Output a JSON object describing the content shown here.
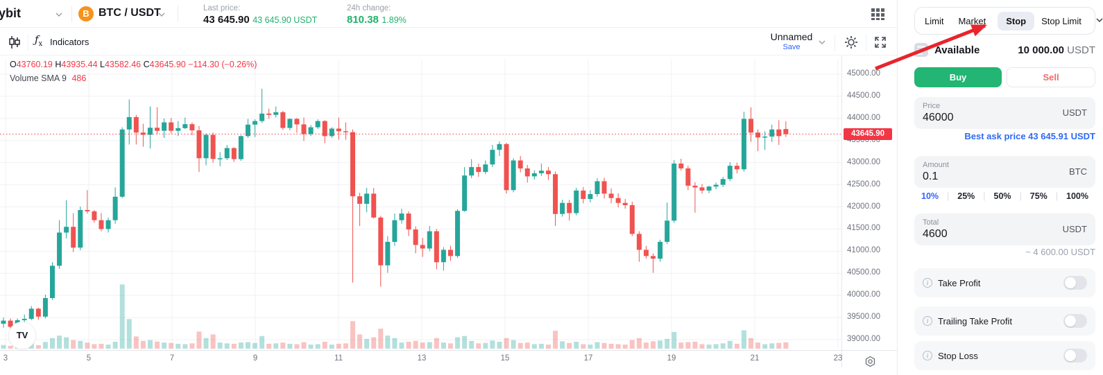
{
  "header": {
    "brand": "ybit",
    "pair": "BTC / USDT",
    "pair_icon": "btc-icon",
    "last_price_label": "Last price:",
    "last_price": "43 645.90",
    "last_price_sub": "43 645.90 USDT",
    "change_label": "24h change:",
    "change_value": "810.38",
    "change_pct": "1.89%"
  },
  "toolbar": {
    "indicators_label": "Indicators",
    "layout_name": "Unnamed",
    "save_label": "Save"
  },
  "legend": {
    "o_label": "O",
    "o": "43760.19",
    "h_label": "H",
    "h": "43935.44",
    "l_label": "L",
    "l": "43582.46",
    "c_label": "C",
    "c": "43645.90",
    "change": "−114.30 (−0.26%)",
    "volume_label": "Volume SMA 9",
    "volume_value": "486"
  },
  "chart_data": {
    "type": "candlestick",
    "timeframe": "4h",
    "title": "BTC / USDT",
    "y_axis": {
      "min": 39000,
      "max": 45000,
      "step": 500,
      "label_format": "0.00"
    },
    "x_axis_days": [
      3,
      5,
      7,
      9,
      11,
      13,
      15,
      17,
      19,
      21,
      23
    ],
    "last_price": 43645.9,
    "grid": true,
    "candles": [
      [
        39360,
        39500,
        39270,
        39430,
        180
      ],
      [
        39430,
        39480,
        39230,
        39290,
        140
      ],
      [
        39290,
        39480,
        39250,
        39440,
        120
      ],
      [
        39440,
        39570,
        39340,
        39470,
        160
      ],
      [
        39470,
        39760,
        39440,
        39700,
        260
      ],
      [
        39700,
        39720,
        39450,
        39520,
        170
      ],
      [
        39520,
        40020,
        39480,
        39940,
        330
      ],
      [
        39940,
        40750,
        39900,
        40670,
        520
      ],
      [
        40670,
        41700,
        40600,
        41420,
        640
      ],
      [
        41420,
        42150,
        41290,
        41550,
        560
      ],
      [
        41550,
        41860,
        40980,
        41080,
        420
      ],
      [
        41080,
        42010,
        41020,
        41930,
        380
      ],
      [
        41930,
        42380,
        41850,
        41900,
        300
      ],
      [
        41900,
        41930,
        41640,
        41700,
        220
      ],
      [
        41700,
        41860,
        41450,
        41500,
        240
      ],
      [
        41500,
        41760,
        41420,
        41700,
        200
      ],
      [
        41700,
        42440,
        41620,
        42230,
        340
      ],
      [
        42230,
        43800,
        42200,
        43750,
        3150
      ],
      [
        43750,
        44430,
        43410,
        44030,
        1450
      ],
      [
        44030,
        44080,
        43410,
        43680,
        600
      ],
      [
        43680,
        43880,
        43360,
        43630,
        380
      ],
      [
        43630,
        44270,
        43320,
        43790,
        420
      ],
      [
        43790,
        44250,
        43650,
        43720,
        350
      ],
      [
        43720,
        44000,
        43560,
        43910,
        300
      ],
      [
        43910,
        44010,
        43660,
        43720,
        280
      ],
      [
        43720,
        43940,
        43600,
        43780,
        240
      ],
      [
        43780,
        44020,
        43760,
        43870,
        220
      ],
      [
        43870,
        43910,
        43620,
        43730,
        260
      ],
      [
        43730,
        43830,
        42790,
        43100,
        840
      ],
      [
        43100,
        43660,
        42940,
        43630,
        520
      ],
      [
        43630,
        43680,
        43000,
        43085,
        700
      ],
      [
        43085,
        43240,
        42920,
        43100,
        300
      ],
      [
        43100,
        43400,
        43060,
        43330,
        260
      ],
      [
        43330,
        43350,
        43020,
        43080,
        240
      ],
      [
        43080,
        43620,
        43040,
        43600,
        300
      ],
      [
        43600,
        43990,
        43560,
        43860,
        320
      ],
      [
        43860,
        43980,
        43580,
        43940,
        280
      ],
      [
        43940,
        44670,
        43900,
        44110,
        620
      ],
      [
        44110,
        44220,
        43990,
        44080,
        240
      ],
      [
        44080,
        44270,
        44020,
        44140,
        260
      ],
      [
        44140,
        44170,
        43740,
        43785,
        300
      ],
      [
        43785,
        44000,
        43730,
        43990,
        240
      ],
      [
        43990,
        44010,
        43675,
        43865,
        220
      ],
      [
        43865,
        44020,
        43490,
        43645,
        320
      ],
      [
        43645,
        43850,
        43600,
        43800,
        200
      ],
      [
        43800,
        43980,
        43760,
        43940,
        220
      ],
      [
        43940,
        43960,
        43440,
        43600,
        340
      ],
      [
        43600,
        43800,
        43560,
        43770,
        200
      ],
      [
        43770,
        44020,
        43520,
        43710,
        240
      ],
      [
        43710,
        43910,
        43520,
        43690,
        260
      ],
      [
        43690,
        43750,
        40290,
        42240,
        1350
      ],
      [
        42240,
        42320,
        41570,
        42070,
        700
      ],
      [
        42070,
        42430,
        41880,
        42300,
        480
      ],
      [
        42300,
        42430,
        41740,
        41760,
        560
      ],
      [
        41760,
        41800,
        40200,
        40680,
        980
      ],
      [
        40680,
        41340,
        40510,
        41210,
        640
      ],
      [
        41210,
        41850,
        41120,
        41700,
        520
      ],
      [
        41700,
        41960,
        41620,
        41850,
        300
      ],
      [
        41850,
        41900,
        41340,
        41490,
        340
      ],
      [
        41490,
        41560,
        40950,
        41140,
        380
      ],
      [
        41140,
        41300,
        40870,
        41060,
        300
      ],
      [
        41060,
        41570,
        41000,
        41450,
        320
      ],
      [
        41450,
        41500,
        40590,
        40750,
        520
      ],
      [
        40750,
        41090,
        40560,
        41030,
        300
      ],
      [
        41030,
        41120,
        40780,
        40890,
        260
      ],
      [
        40890,
        41950,
        40850,
        41910,
        560
      ],
      [
        41910,
        42900,
        41890,
        42710,
        620
      ],
      [
        42710,
        43080,
        42650,
        42900,
        380
      ],
      [
        42900,
        42980,
        42680,
        42790,
        260
      ],
      [
        42790,
        43050,
        42740,
        42960,
        280
      ],
      [
        42960,
        43400,
        42900,
        43290,
        400
      ],
      [
        43290,
        43480,
        43150,
        43420,
        340
      ],
      [
        43420,
        43450,
        42300,
        42380,
        520
      ],
      [
        42380,
        43100,
        42330,
        43050,
        420
      ],
      [
        43050,
        43150,
        42780,
        42870,
        280
      ],
      [
        42870,
        42950,
        42550,
        42690,
        300
      ],
      [
        42690,
        42830,
        42620,
        42760,
        220
      ],
      [
        42760,
        42980,
        42700,
        42820,
        240
      ],
      [
        42820,
        42900,
        42610,
        42740,
        200
      ],
      [
        42740,
        42800,
        41570,
        41840,
        880
      ],
      [
        41840,
        42160,
        41780,
        42090,
        360
      ],
      [
        42090,
        42160,
        41690,
        41860,
        280
      ],
      [
        41860,
        42430,
        41810,
        42370,
        340
      ],
      [
        42370,
        42450,
        42080,
        42180,
        220
      ],
      [
        42180,
        42380,
        42100,
        42290,
        200
      ],
      [
        42290,
        42650,
        42230,
        42580,
        320
      ],
      [
        42580,
        42660,
        42190,
        42300,
        280
      ],
      [
        42300,
        42420,
        42080,
        42200,
        240
      ],
      [
        42200,
        42310,
        41990,
        42090,
        220
      ],
      [
        42090,
        42180,
        41960,
        42040,
        200
      ],
      [
        42040,
        42120,
        41340,
        41390,
        420
      ],
      [
        41390,
        41450,
        40760,
        41030,
        520
      ],
      [
        41030,
        41120,
        40830,
        40890,
        300
      ],
      [
        40890,
        40950,
        40510,
        40830,
        360
      ],
      [
        40830,
        41260,
        40760,
        41210,
        400
      ],
      [
        41210,
        42100,
        41160,
        41690,
        480
      ],
      [
        41690,
        43060,
        41640,
        42980,
        820
      ],
      [
        42980,
        43090,
        42820,
        42870,
        300
      ],
      [
        42870,
        42930,
        42380,
        42480,
        320
      ],
      [
        42480,
        42560,
        41870,
        42440,
        340
      ],
      [
        42440,
        42520,
        42300,
        42370,
        220
      ],
      [
        42370,
        42480,
        42310,
        42460,
        200
      ],
      [
        42460,
        42550,
        42400,
        42500,
        220
      ],
      [
        42500,
        42680,
        42450,
        42630,
        260
      ],
      [
        42630,
        43010,
        42580,
        42930,
        380
      ],
      [
        42930,
        43000,
        42760,
        42850,
        240
      ],
      [
        42850,
        44150,
        42800,
        43990,
        900
      ],
      [
        43990,
        44250,
        43470,
        43680,
        520
      ],
      [
        43680,
        43750,
        43260,
        43570,
        300
      ],
      [
        43570,
        43710,
        43290,
        43590,
        220
      ],
      [
        43590,
        43860,
        43470,
        43750,
        260
      ],
      [
        43750,
        43960,
        43400,
        43600,
        280
      ],
      [
        43760.19,
        43935.44,
        43582.46,
        43645.9,
        310
      ]
    ]
  },
  "colors": {
    "up": "#26a69a",
    "down": "#ef5350",
    "vol_up": "rgba(38,166,154,0.35)",
    "vol_down": "rgba(239,83,80,0.35)",
    "price_line": "#f23645",
    "buy_green": "#22b573",
    "sell_red": "#f46a6a",
    "accent_blue": "#2d6bf3",
    "arrow_red": "#e8242d"
  },
  "order_panel": {
    "tabs": [
      {
        "label": "Limit",
        "active": false
      },
      {
        "label": "Market",
        "active": false
      },
      {
        "label": "Stop",
        "active": true
      },
      {
        "label": "Stop Limit",
        "active": false
      }
    ],
    "available_label": "Available",
    "available_value": "10 000.00",
    "available_unit": "USDT",
    "buy_label": "Buy",
    "sell_label": "Sell",
    "price_field": {
      "label": "Price",
      "value": "46000",
      "unit": "USDT"
    },
    "best_ask": "Best ask price 43 645.91 USDT",
    "amount_field": {
      "label": "Amount",
      "value": "0.1",
      "unit": "BTC"
    },
    "percents": [
      "10%",
      "25%",
      "50%",
      "75%",
      "100%"
    ],
    "active_percent": "10%",
    "total_field": {
      "label": "Total",
      "value": "4600",
      "unit": "USDT"
    },
    "approx_total": "~ 4 600.00 USDT",
    "toggles": [
      {
        "label": "Take Profit",
        "on": false
      },
      {
        "label": "Trailing Take Profit",
        "on": false
      },
      {
        "label": "Stop Loss",
        "on": false
      }
    ]
  },
  "price_tag": "43645.90",
  "tv_logo": "TV"
}
